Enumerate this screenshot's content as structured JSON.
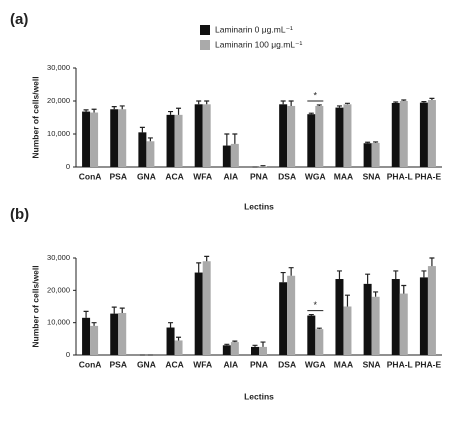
{
  "chart_data": [
    {
      "type": "bar",
      "label": "(a)",
      "y_label": "Number of cells/well",
      "x_label": "Lectins",
      "categories": [
        "ConA",
        "PSA",
        "GNA",
        "ACA",
        "WFA",
        "AIA",
        "PNA",
        "DSA",
        "WGA",
        "MAA",
        "SNA",
        "PHA-L",
        "PHA-E"
      ],
      "series": [
        {
          "name": "Laminarin 0 μg.mL⁻¹",
          "color": "#111111",
          "values": [
            16800,
            17500,
            10500,
            15800,
            19000,
            6500,
            0,
            19000,
            16000,
            18000,
            7200,
            19400,
            19500
          ],
          "errors": [
            500,
            800,
            1500,
            1000,
            1000,
            3500,
            0,
            1000,
            300,
            500,
            300,
            300,
            300
          ]
        },
        {
          "name": "Laminarin 100 μg.mL⁻¹",
          "color": "#aaaaaa",
          "values": [
            16500,
            17500,
            7800,
            15800,
            19000,
            7000,
            200,
            18500,
            18500,
            19000,
            7300,
            20000,
            20300
          ],
          "errors": [
            1000,
            1000,
            1000,
            2000,
            1000,
            3000,
            200,
            1500,
            300,
            300,
            300,
            300,
            500
          ]
        }
      ],
      "annotations": [
        {
          "text": "*",
          "x": "WGA"
        }
      ],
      "ylim": [
        0,
        30000
      ],
      "yticks": [
        0,
        {
          "value": 10000,
          "label": "10,000"
        },
        {
          "value": 20000,
          "label": "20,000"
        },
        {
          "value": 30000,
          "label": "30,000"
        }
      ]
    },
    {
      "type": "bar",
      "label": "(b)",
      "y_label": "Number of cells/well",
      "x_label": "Lectins",
      "categories": [
        "ConA",
        "PSA",
        "GNA",
        "ACA",
        "WFA",
        "AIA",
        "PNA",
        "DSA",
        "WGA",
        "MAA",
        "SNA",
        "PHA-L",
        "PHA-E"
      ],
      "series": [
        {
          "color": "#111111",
          "values": [
            11500,
            12800,
            0,
            8500,
            25500,
            3000,
            2500,
            22500,
            12200,
            23500,
            22000,
            23500,
            24000
          ],
          "errors": [
            2000,
            2000,
            0,
            1500,
            3000,
            300,
            500,
            3000,
            300,
            2500,
            3000,
            2500,
            2000
          ]
        },
        {
          "color": "#aaaaaa",
          "values": [
            9000,
            13000,
            0,
            4500,
            29000,
            4000,
            2500,
            24500,
            8000,
            15000,
            18000,
            19000,
            27500
          ],
          "errors": [
            1000,
            1500,
            0,
            1000,
            1500,
            300,
            1500,
            2500,
            300,
            3500,
            1500,
            2500,
            2500
          ]
        }
      ],
      "annotations": [
        {
          "text": "*",
          "x": "WGA"
        }
      ],
      "ylim": [
        0,
        30000
      ],
      "yticks": [
        0,
        {
          "value": 10000,
          "label": "10,000"
        },
        {
          "value": 20000,
          "label": "20,000"
        },
        {
          "value": 30000,
          "label": "30,000"
        }
      ]
    }
  ]
}
